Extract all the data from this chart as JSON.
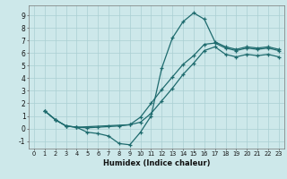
{
  "xlabel": "Humidex (Indice chaleur)",
  "xlim": [
    -0.5,
    23.5
  ],
  "ylim": [
    -1.6,
    9.8
  ],
  "xticks": [
    0,
    1,
    2,
    3,
    4,
    5,
    6,
    7,
    8,
    9,
    10,
    11,
    12,
    13,
    14,
    15,
    16,
    17,
    18,
    19,
    20,
    21,
    22,
    23
  ],
  "yticks": [
    -1,
    0,
    1,
    2,
    3,
    4,
    5,
    6,
    7,
    8,
    9
  ],
  "bg_color": "#cde8ea",
  "line_color": "#1e6b6e",
  "grid_color": "#aacfd3",
  "line1_x": [
    1,
    2,
    3,
    4,
    5,
    6,
    7,
    8,
    9,
    10,
    11,
    12,
    13,
    14,
    15,
    16,
    17,
    18,
    19,
    20,
    21,
    22,
    23
  ],
  "line1_y": [
    1.4,
    0.7,
    0.2,
    0.1,
    -0.3,
    -0.4,
    -0.6,
    -1.2,
    -1.3,
    -0.3,
    1.0,
    4.8,
    7.2,
    8.5,
    9.2,
    8.7,
    6.9,
    6.5,
    6.3,
    6.5,
    6.4,
    6.5,
    6.3
  ],
  "line2_x": [
    1,
    2,
    3,
    4,
    5,
    6,
    7,
    8,
    9,
    10,
    11,
    12,
    13,
    14,
    15,
    16,
    17,
    18,
    19,
    20,
    21,
    22,
    23
  ],
  "line2_y": [
    1.4,
    0.7,
    0.2,
    0.1,
    0.05,
    0.1,
    0.15,
    0.2,
    0.3,
    0.9,
    2.0,
    3.1,
    4.1,
    5.1,
    5.8,
    6.7,
    6.8,
    6.4,
    6.2,
    6.4,
    6.3,
    6.4,
    6.2
  ],
  "line3_x": [
    1,
    2,
    3,
    4,
    9,
    10,
    11,
    12,
    13,
    14,
    15,
    16,
    17,
    18,
    19,
    20,
    21,
    22,
    23
  ],
  "line3_y": [
    1.4,
    0.7,
    0.2,
    0.1,
    0.3,
    0.5,
    1.2,
    2.2,
    3.2,
    4.3,
    5.2,
    6.2,
    6.5,
    5.9,
    5.7,
    5.9,
    5.8,
    5.9,
    5.7
  ]
}
